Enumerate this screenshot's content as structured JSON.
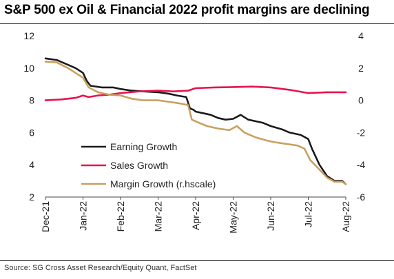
{
  "title": "S&P 500 ex Oil & Financial 2022 profit margins are declining",
  "source": "Source: SG Cross Asset Research/Equity Quant, FactSet",
  "chart_data": {
    "type": "line",
    "x_categories": [
      "Dec-21",
      "Jan-22",
      "Feb-22",
      "Mar-22",
      "Apr-22",
      "May-22",
      "Jun-22",
      "Jul-22",
      "Aug-22"
    ],
    "y_left": {
      "min": 2,
      "max": 12,
      "ticks": [
        2,
        4,
        6,
        8,
        10,
        12
      ]
    },
    "y_right": {
      "min": -6,
      "max": 4,
      "ticks": [
        -6,
        -4,
        -2,
        0,
        2,
        4
      ]
    },
    "legend_position": "lower-left",
    "grid": false,
    "series": [
      {
        "name": "Earning Growth",
        "axis": "left",
        "color": "#1a1a1a",
        "points": [
          [
            0,
            10.6
          ],
          [
            0.3,
            10.5
          ],
          [
            0.6,
            10.2
          ],
          [
            0.8,
            10.0
          ],
          [
            1.0,
            9.7
          ],
          [
            1.1,
            9.2
          ],
          [
            1.2,
            8.9
          ],
          [
            1.5,
            8.8
          ],
          [
            1.8,
            8.8
          ],
          [
            2.0,
            8.7
          ],
          [
            2.3,
            8.6
          ],
          [
            2.6,
            8.55
          ],
          [
            3.0,
            8.5
          ],
          [
            3.3,
            8.4
          ],
          [
            3.5,
            8.3
          ],
          [
            3.75,
            8.2
          ],
          [
            3.85,
            7.5
          ],
          [
            3.95,
            7.4
          ],
          [
            4.0,
            7.3
          ],
          [
            4.2,
            7.2
          ],
          [
            4.4,
            7.1
          ],
          [
            4.6,
            6.9
          ],
          [
            4.8,
            6.8
          ],
          [
            5.0,
            6.85
          ],
          [
            5.2,
            7.1
          ],
          [
            5.4,
            6.8
          ],
          [
            5.6,
            6.7
          ],
          [
            5.8,
            6.6
          ],
          [
            6.0,
            6.4
          ],
          [
            6.3,
            6.2
          ],
          [
            6.5,
            6.0
          ],
          [
            6.8,
            5.85
          ],
          [
            7.0,
            5.6
          ],
          [
            7.1,
            5.0
          ],
          [
            7.3,
            4.0
          ],
          [
            7.5,
            3.3
          ],
          [
            7.7,
            3.0
          ],
          [
            7.9,
            3.0
          ],
          [
            8.0,
            2.8
          ]
        ]
      },
      {
        "name": "Sales Growth",
        "axis": "left",
        "color": "#e8134a",
        "points": [
          [
            0,
            8.0
          ],
          [
            0.4,
            8.05
          ],
          [
            0.8,
            8.15
          ],
          [
            1.0,
            8.3
          ],
          [
            1.15,
            8.2
          ],
          [
            1.4,
            8.3
          ],
          [
            1.7,
            8.35
          ],
          [
            2.0,
            8.45
          ],
          [
            2.5,
            8.55
          ],
          [
            3.0,
            8.6
          ],
          [
            3.4,
            8.55
          ],
          [
            3.8,
            8.6
          ],
          [
            4.0,
            8.75
          ],
          [
            4.5,
            8.8
          ],
          [
            5.0,
            8.82
          ],
          [
            5.5,
            8.85
          ],
          [
            6.0,
            8.8
          ],
          [
            6.5,
            8.65
          ],
          [
            7.0,
            8.45
          ],
          [
            7.5,
            8.5
          ],
          [
            8.0,
            8.5
          ]
        ]
      },
      {
        "name": "Margin Growth (r.hscale)",
        "axis": "right",
        "color": "#c8a05e",
        "points": [
          [
            0,
            2.4
          ],
          [
            0.3,
            2.35
          ],
          [
            0.6,
            2.0
          ],
          [
            0.8,
            1.7
          ],
          [
            1.0,
            1.4
          ],
          [
            1.15,
            0.8
          ],
          [
            1.4,
            0.5
          ],
          [
            1.7,
            0.35
          ],
          [
            2.0,
            0.3
          ],
          [
            2.3,
            0.1
          ],
          [
            2.6,
            0.0
          ],
          [
            3.0,
            0.0
          ],
          [
            3.3,
            -0.1
          ],
          [
            3.6,
            -0.2
          ],
          [
            3.8,
            -0.3
          ],
          [
            3.9,
            -1.2
          ],
          [
            4.1,
            -1.4
          ],
          [
            4.3,
            -1.6
          ],
          [
            4.6,
            -1.75
          ],
          [
            4.9,
            -1.85
          ],
          [
            5.1,
            -1.6
          ],
          [
            5.3,
            -2.0
          ],
          [
            5.6,
            -2.3
          ],
          [
            5.9,
            -2.5
          ],
          [
            6.1,
            -2.6
          ],
          [
            6.4,
            -2.7
          ],
          [
            6.7,
            -2.8
          ],
          [
            6.9,
            -3.0
          ],
          [
            7.05,
            -3.7
          ],
          [
            7.3,
            -4.3
          ],
          [
            7.5,
            -4.8
          ],
          [
            7.7,
            -5.05
          ],
          [
            7.9,
            -5.05
          ],
          [
            8.0,
            -5.2
          ]
        ]
      }
    ]
  }
}
